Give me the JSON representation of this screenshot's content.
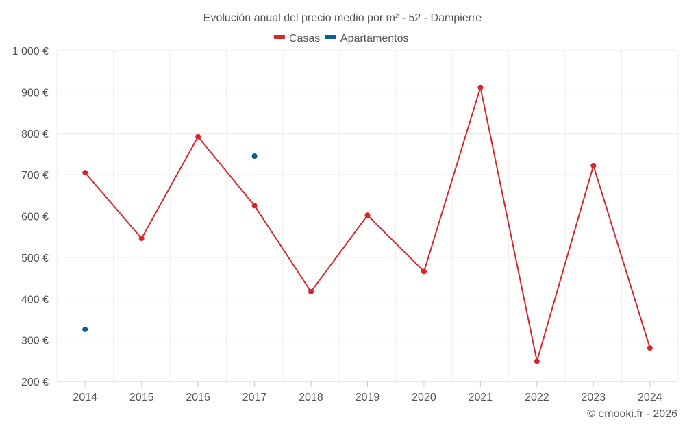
{
  "chart_data": {
    "type": "line",
    "title": "Evolución anual del precio medio por m² - 52 - Dampierre",
    "categories": [
      "2014",
      "2015",
      "2016",
      "2017",
      "2018",
      "2019",
      "2020",
      "2021",
      "2022",
      "2023",
      "2024"
    ],
    "series": [
      {
        "name": "Casas",
        "color": "#d3272d",
        "connected": true,
        "values": [
          705,
          546,
          792,
          625,
          417,
          602,
          466,
          911,
          249,
          722,
          281
        ]
      },
      {
        "name": "Apartamentos",
        "color": "#0b5f96",
        "connected": false,
        "values": [
          326,
          null,
          null,
          745,
          null,
          null,
          null,
          null,
          null,
          null,
          null
        ]
      }
    ],
    "ylim": [
      200,
      1000
    ],
    "yticks": [
      200,
      300,
      400,
      500,
      600,
      700,
      800,
      900,
      1000
    ],
    "ytick_labels": [
      "200 €",
      "300 €",
      "400 €",
      "500 €",
      "600 €",
      "700 €",
      "800 €",
      "900 €",
      "1 000 €"
    ],
    "xlabel": "",
    "ylabel": "",
    "grid": true,
    "legend_position": "top-center"
  },
  "credit": "© emooki.fr - 2026"
}
